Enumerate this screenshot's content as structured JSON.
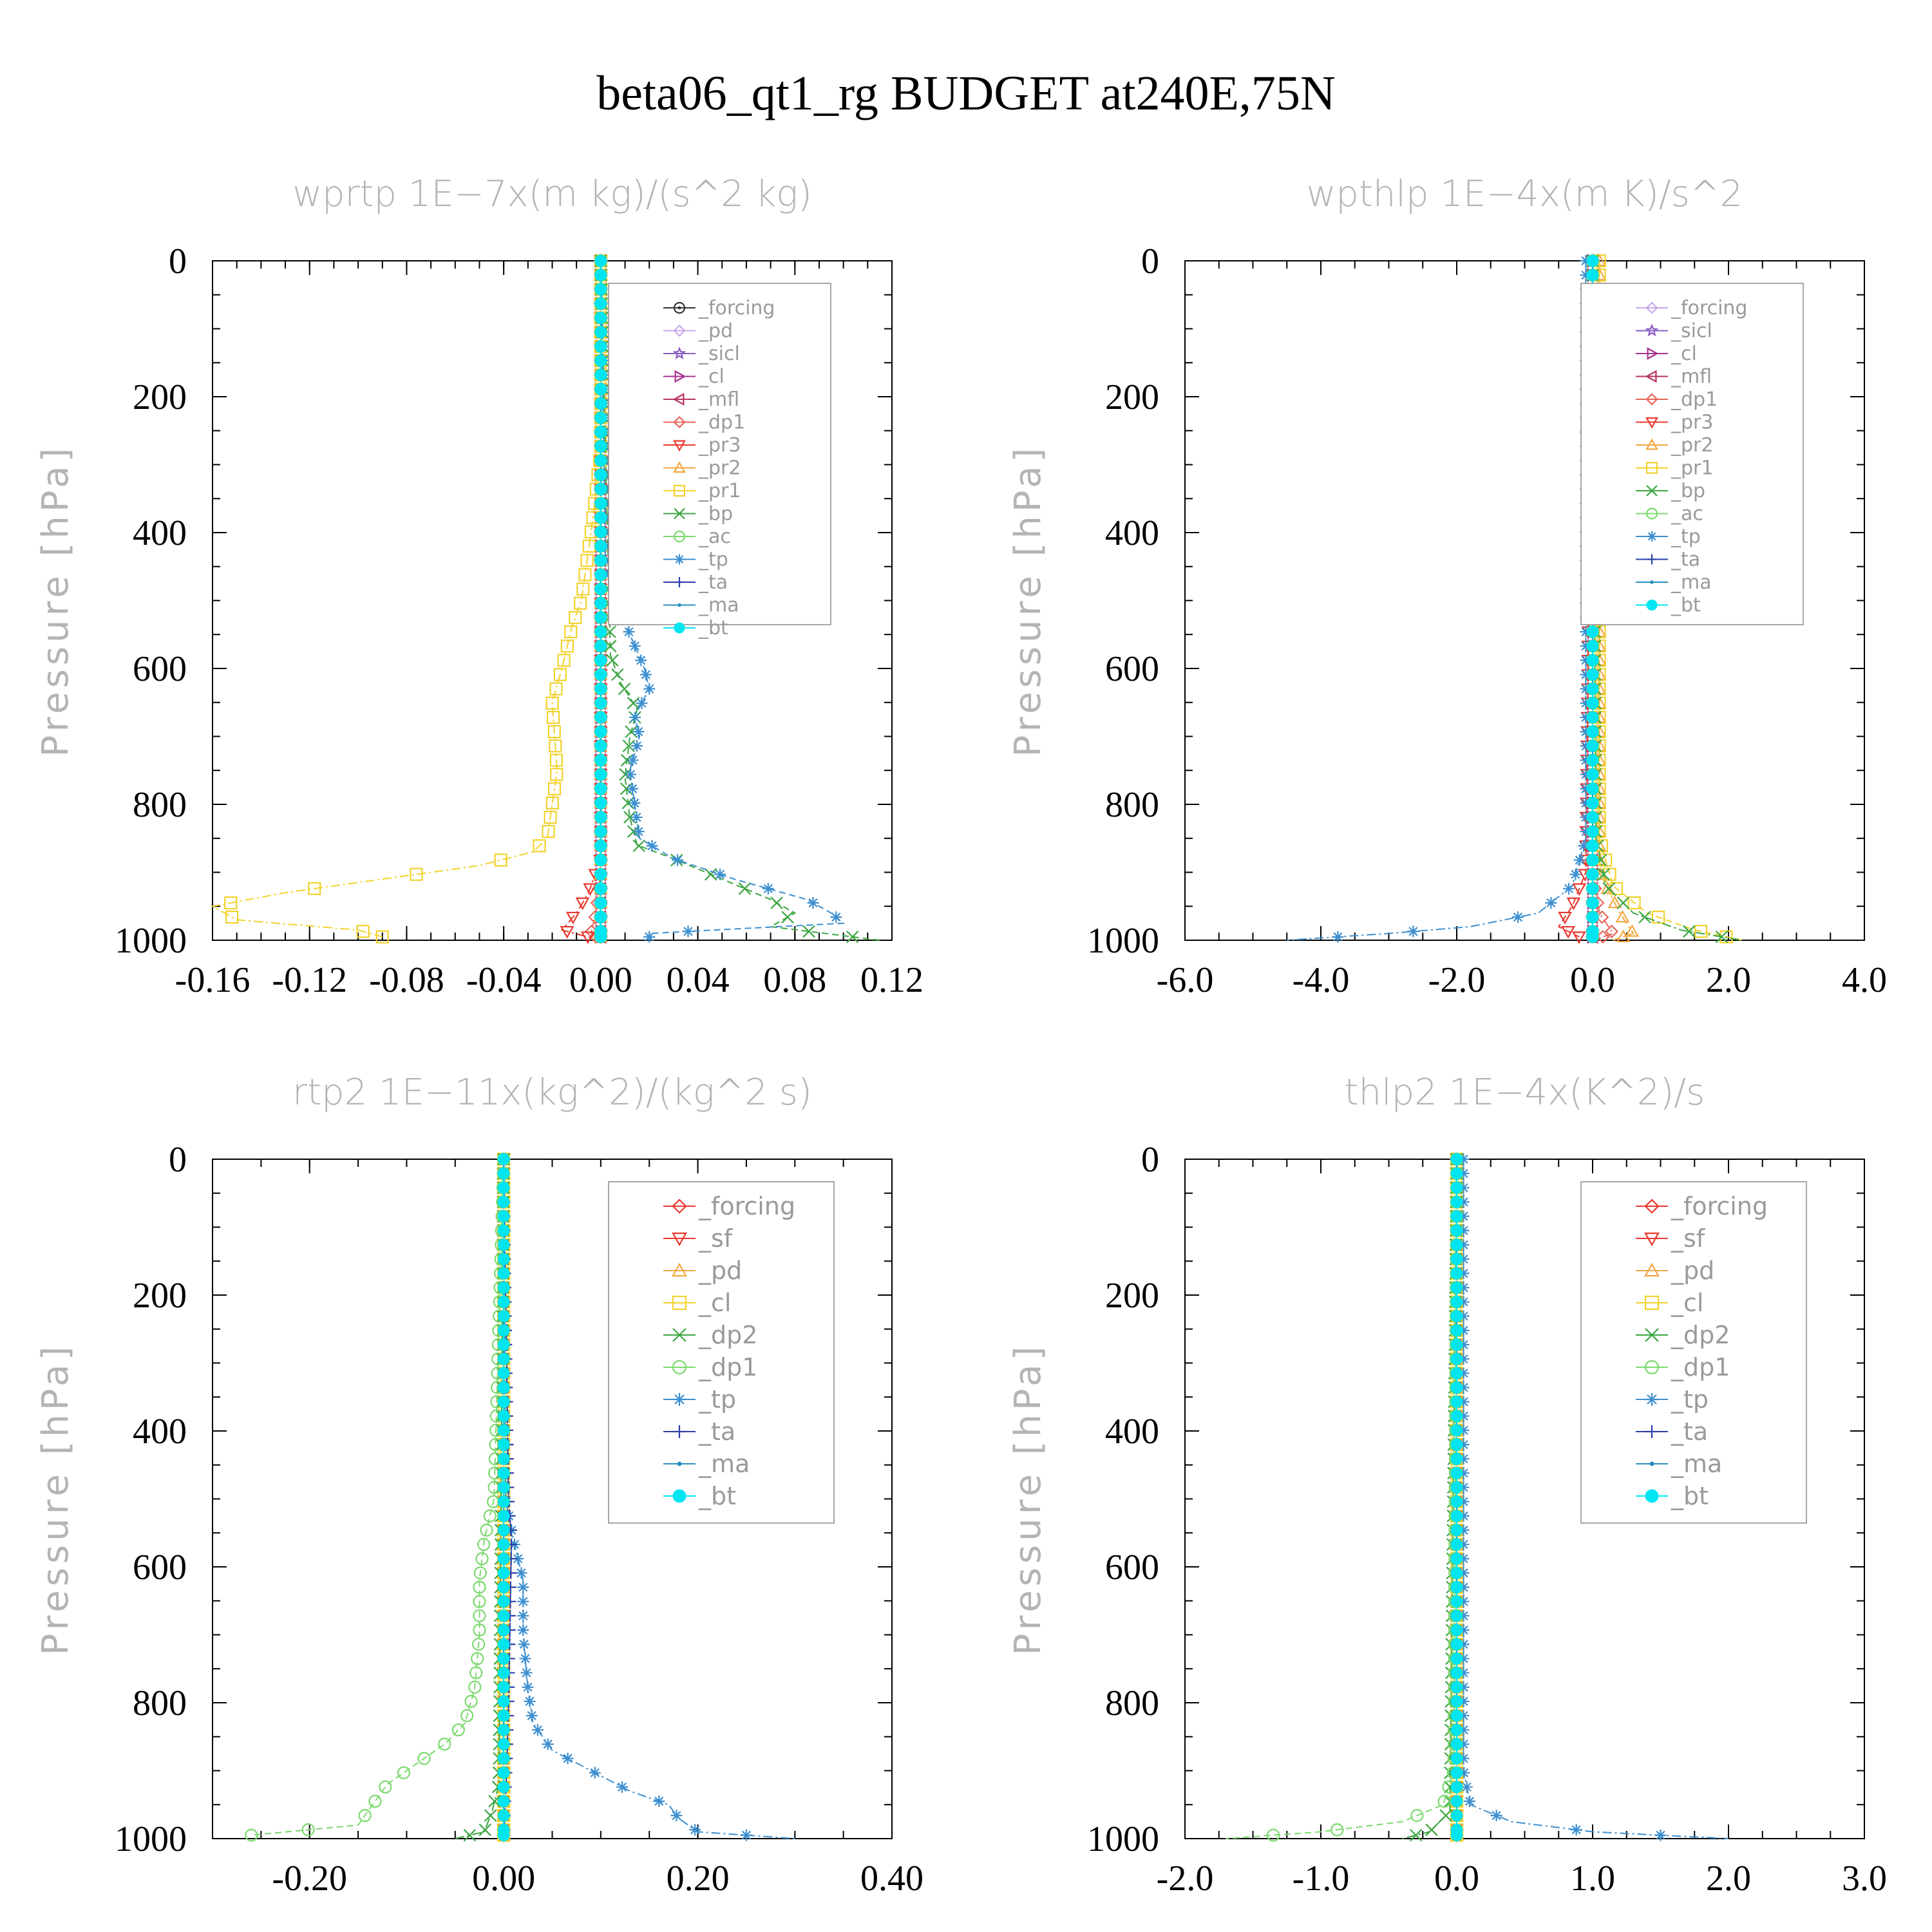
{
  "title": "beta06_qt1_rg  BUDGET at240E,75N",
  "chart_data": [
    {
      "type": "line",
      "title": "wprtp   1E−7x(m kg)/(s^2 kg)",
      "ylabel": "Pressure [hPa]",
      "xlabel": "",
      "xlim": [
        -0.16,
        0.12
      ],
      "ylim": [
        1000,
        0
      ],
      "xticks": [
        "-0.16",
        "-0.12",
        "-0.08",
        "-0.04",
        "0.00",
        "0.04",
        "0.08",
        "0.12"
      ],
      "yticks": [
        "0",
        "200",
        "400",
        "600",
        "800",
        "1000"
      ],
      "legend": "top-right",
      "series": [
        {
          "name": "_forcing",
          "color": "#333333",
          "marker": "circle-dot",
          "p": [
            0,
            500,
            1000
          ],
          "x": [
            0,
            0,
            0
          ]
        },
        {
          "name": "_pd",
          "color": "#c9a8e8",
          "marker": "diamond",
          "p": [
            0,
            1000
          ],
          "x": [
            0,
            0
          ]
        },
        {
          "name": "_sicl",
          "color": "#8a5cc2",
          "marker": "star",
          "p": [
            0,
            1000
          ],
          "x": [
            0,
            0
          ]
        },
        {
          "name": "_cl",
          "color": "#a4308f",
          "marker": "tri-right",
          "p": [
            0,
            1000
          ],
          "x": [
            0,
            0
          ]
        },
        {
          "name": "_mfl",
          "color": "#b83262",
          "marker": "tri-left",
          "p": [
            0,
            1000
          ],
          "x": [
            0,
            0
          ]
        },
        {
          "name": "_dp1",
          "color": "#e8665a",
          "marker": "diamond",
          "p": [
            0,
            900,
            960,
            990,
            1000
          ],
          "x": [
            0,
            0,
            -0.002,
            -0.004,
            0
          ]
        },
        {
          "name": "_pr3",
          "color": "#e8372c",
          "marker": "tri-down",
          "p": [
            0,
            880,
            930,
            960,
            985,
            1000
          ],
          "x": [
            0,
            0,
            -0.005,
            -0.01,
            -0.016,
            0
          ]
        },
        {
          "name": "_pr2",
          "color": "#f2a742",
          "marker": "tri-up",
          "p": [
            0,
            1000
          ],
          "x": [
            0,
            0
          ]
        },
        {
          "name": "_pr1",
          "color": "#f2d22c",
          "marker": "square",
          "p": [
            0,
            280,
            400,
            500,
            540,
            600,
            650,
            700,
            750,
            800,
            850,
            870,
            890,
            910,
            930,
            950,
            970,
            985,
            995
          ],
          "x": [
            0,
            0,
            -0.004,
            -0.008,
            -0.012,
            -0.016,
            -0.02,
            -0.019,
            -0.018,
            -0.02,
            -0.022,
            -0.028,
            -0.05,
            -0.09,
            -0.13,
            -0.16,
            -0.15,
            -0.1,
            -0.09
          ]
        },
        {
          "name": "_bp",
          "color": "#3aa640",
          "marker": "x",
          "p": [
            0,
            580,
            620,
            660,
            700,
            760,
            820,
            860,
            880,
            910,
            940,
            960,
            980,
            1000
          ],
          "x": [
            0,
            0.004,
            0.008,
            0.015,
            0.012,
            0.01,
            0.012,
            0.015,
            0.03,
            0.05,
            0.07,
            0.08,
            0.07,
            0.115
          ]
        },
        {
          "name": "_ac",
          "color": "#7bd96e",
          "marker": "circle",
          "p": [
            0,
            1000
          ],
          "x": [
            0,
            0
          ]
        },
        {
          "name": "_tp",
          "color": "#3c8fd0",
          "marker": "asterisk",
          "p": [
            0,
            450,
            550,
            600,
            630,
            670,
            700,
            750,
            800,
            850,
            880,
            910,
            940,
            960,
            975,
            990
          ],
          "x": [
            0,
            0.002,
            0.012,
            0.018,
            0.02,
            0.014,
            0.016,
            0.012,
            0.014,
            0.016,
            0.03,
            0.055,
            0.085,
            0.095,
            0.1,
            0.02
          ]
        },
        {
          "name": "_ta",
          "color": "#2a3fa8",
          "marker": "plus",
          "p": [
            0,
            1000
          ],
          "x": [
            0,
            0
          ]
        },
        {
          "name": "_ma",
          "color": "#2a8fc0",
          "marker": "dot",
          "p": [
            0,
            1000
          ],
          "x": [
            0,
            0
          ]
        },
        {
          "name": "_bt",
          "color": "#00e5f0",
          "marker": "filled-circle",
          "p": [
            0,
            1000
          ],
          "x": [
            0,
            0
          ]
        }
      ]
    },
    {
      "type": "line",
      "title": "wpthlp   1E−4x(m K)/s^2",
      "ylabel": "Pressure [hPa]",
      "xlabel": "",
      "xlim": [
        -6.0,
        4.0
      ],
      "ylim": [
        1000,
        0
      ],
      "xticks": [
        "-6.0",
        "-4.0",
        "-2.0",
        "0.0",
        "2.0",
        "4.0"
      ],
      "yticks": [
        "0",
        "200",
        "400",
        "600",
        "800",
        "1000"
      ],
      "legend": "top-right",
      "series": [
        {
          "name": "_forcing",
          "color": "#c9a8e8",
          "marker": "diamond",
          "p": [
            0,
            1000
          ],
          "x": [
            0,
            0
          ]
        },
        {
          "name": "_sicl",
          "color": "#8a5cc2",
          "marker": "star",
          "p": [
            0,
            1000
          ],
          "x": [
            0,
            0
          ]
        },
        {
          "name": "_cl",
          "color": "#a4308f",
          "marker": "tri-right",
          "p": [
            0,
            1000
          ],
          "x": [
            0,
            0
          ]
        },
        {
          "name": "_mfl",
          "color": "#b83262",
          "marker": "tri-left",
          "p": [
            0,
            1000
          ],
          "x": [
            0,
            0
          ]
        },
        {
          "name": "_dp1",
          "color": "#e8665a",
          "marker": "diamond",
          "p": [
            0,
            900,
            960,
            990,
            1000
          ],
          "x": [
            0,
            0,
            0.1,
            0.3,
            0
          ]
        },
        {
          "name": "_pr3",
          "color": "#e8372c",
          "marker": "tri-down",
          "p": [
            0,
            900,
            950,
            980,
            995
          ],
          "x": [
            0,
            -0.1,
            -0.3,
            -0.5,
            -0.2
          ]
        },
        {
          "name": "_pr2",
          "color": "#f2a742",
          "marker": "tri-up",
          "p": [
            0,
            900,
            960,
            990,
            1000
          ],
          "x": [
            0.1,
            0.1,
            0.4,
            0.6,
            0.3
          ]
        },
        {
          "name": "_pr1",
          "color": "#f2d22c",
          "marker": "square",
          "p": [
            0,
            850,
            920,
            960,
            985,
            1000
          ],
          "x": [
            0.1,
            0.1,
            0.3,
            0.8,
            1.5,
            2.2
          ]
        },
        {
          "name": "_bp",
          "color": "#3aa640",
          "marker": "x",
          "p": [
            0,
            850,
            920,
            960,
            985,
            1000
          ],
          "x": [
            0,
            0.05,
            0.2,
            0.6,
            1.3,
            2.2
          ]
        },
        {
          "name": "_ac",
          "color": "#7bd96e",
          "marker": "circle",
          "p": [
            0,
            1000
          ],
          "x": [
            0,
            0
          ]
        },
        {
          "name": "_tp",
          "color": "#3c8fd0",
          "marker": "asterisk",
          "p": [
            0,
            850,
            920,
            960,
            980,
            990,
            1000
          ],
          "x": [
            -0.1,
            -0.1,
            -0.3,
            -0.8,
            -1.8,
            -3.0,
            -4.5
          ]
        },
        {
          "name": "_ta",
          "color": "#2a3fa8",
          "marker": "plus",
          "p": [
            0,
            1000
          ],
          "x": [
            0,
            0
          ]
        },
        {
          "name": "_ma",
          "color": "#2a8fc0",
          "marker": "dot",
          "p": [
            0,
            1000
          ],
          "x": [
            0,
            0
          ]
        },
        {
          "name": "_bt",
          "color": "#00e5f0",
          "marker": "filled-circle",
          "p": [
            0,
            1000
          ],
          "x": [
            0,
            0
          ]
        }
      ]
    },
    {
      "type": "line",
      "title": "rtp2   1E−11x(kg^2)/(kg^2 s)",
      "ylabel": "Pressure [hPa]",
      "xlabel": "",
      "xlim": [
        -0.3,
        0.4
      ],
      "ylim": [
        1000,
        0
      ],
      "xticks": [
        "-0.20",
        "0.00",
        "0.20",
        "0.40"
      ],
      "xtick_values": [
        -0.2,
        0.0,
        0.2,
        0.4
      ],
      "yticks": [
        "0",
        "200",
        "400",
        "600",
        "800",
        "1000"
      ],
      "legend": "top-right",
      "series": [
        {
          "name": "_forcing",
          "color": "#e8372c",
          "marker": "diamond",
          "p": [
            0,
            1000
          ],
          "x": [
            0,
            0
          ]
        },
        {
          "name": "_sf",
          "color": "#e8372c",
          "marker": "tri-down",
          "p": [
            0,
            1000
          ],
          "x": [
            0,
            0
          ]
        },
        {
          "name": "_pd",
          "color": "#f2a742",
          "marker": "tri-up",
          "p": [
            0,
            1000
          ],
          "x": [
            0,
            0
          ]
        },
        {
          "name": "_cl",
          "color": "#f2d22c",
          "marker": "square",
          "p": [
            0,
            1000
          ],
          "x": [
            0,
            0
          ]
        },
        {
          "name": "_dp2",
          "color": "#3aa640",
          "marker": "x",
          "p": [
            0,
            920,
            960,
            990,
            1000
          ],
          "x": [
            0,
            -0.005,
            -0.012,
            -0.02,
            -0.05
          ]
        },
        {
          "name": "_dp1",
          "color": "#7bd96e",
          "marker": "circle",
          "p": [
            0,
            500,
            560,
            620,
            700,
            780,
            830,
            860,
            880,
            900,
            920,
            940,
            960,
            980,
            995
          ],
          "x": [
            0,
            -0.01,
            -0.02,
            -0.025,
            -0.025,
            -0.03,
            -0.04,
            -0.06,
            -0.08,
            -0.1,
            -0.12,
            -0.13,
            -0.14,
            -0.15,
            -0.26
          ]
        },
        {
          "name": "_tp",
          "color": "#3c8fd0",
          "marker": "asterisk",
          "p": [
            0,
            500,
            560,
            620,
            700,
            780,
            830,
            870,
            900,
            930,
            950,
            970,
            990,
            1000
          ],
          "x": [
            0,
            0.002,
            0.01,
            0.02,
            0.02,
            0.025,
            0.03,
            0.05,
            0.09,
            0.13,
            0.17,
            0.18,
            0.2,
            0.3
          ]
        },
        {
          "name": "_ta",
          "color": "#2a3fa8",
          "marker": "plus",
          "p": [
            0,
            500,
            560,
            800,
            900,
            1000
          ],
          "x": [
            0,
            0.005,
            0.008,
            0.005,
            0.003,
            0
          ]
        },
        {
          "name": "_ma",
          "color": "#2a8fc0",
          "marker": "dot",
          "p": [
            0,
            1000
          ],
          "x": [
            0,
            0
          ]
        },
        {
          "name": "_bt",
          "color": "#00e5f0",
          "marker": "filled-circle",
          "p": [
            0,
            1000
          ],
          "x": [
            0,
            0
          ]
        }
      ]
    },
    {
      "type": "line",
      "title": "thlp2   1E−4x(K^2)/s",
      "ylabel": "Pressure [hPa]",
      "xlabel": "",
      "xlim": [
        -2.0,
        3.0
      ],
      "ylim": [
        1000,
        0
      ],
      "xticks": [
        "-2.0",
        "-1.0",
        "0.0",
        "1.0",
        "2.0",
        "3.0"
      ],
      "yticks": [
        "0",
        "200",
        "400",
        "600",
        "800",
        "1000"
      ],
      "legend": "top-right",
      "series": [
        {
          "name": "_forcing",
          "color": "#e8372c",
          "marker": "diamond",
          "p": [
            0,
            1000
          ],
          "x": [
            0,
            0
          ]
        },
        {
          "name": "_sf",
          "color": "#e8372c",
          "marker": "tri-down",
          "p": [
            0,
            1000
          ],
          "x": [
            0,
            0
          ]
        },
        {
          "name": "_pd",
          "color": "#f2a742",
          "marker": "tri-up",
          "p": [
            0,
            1000
          ],
          "x": [
            0,
            0
          ]
        },
        {
          "name": "_cl",
          "color": "#f2d22c",
          "marker": "square",
          "p": [
            0,
            1000
          ],
          "x": [
            0,
            0
          ]
        },
        {
          "name": "_dp2",
          "color": "#3aa640",
          "marker": "x",
          "p": [
            0,
            960,
            990,
            1000
          ],
          "x": [
            0,
            -0.05,
            -0.2,
            -0.4
          ]
        },
        {
          "name": "_dp1",
          "color": "#7bd96e",
          "marker": "circle",
          "p": [
            0,
            900,
            950,
            975,
            990,
            1000
          ],
          "x": [
            0,
            -0.02,
            -0.1,
            -0.4,
            -1.0,
            -1.7
          ]
        },
        {
          "name": "_tp",
          "color": "#3c8fd0",
          "marker": "asterisk",
          "p": [
            0,
            900,
            950,
            975,
            990,
            1000
          ],
          "x": [
            0.05,
            0.05,
            0.1,
            0.4,
            1.0,
            2.0
          ]
        },
        {
          "name": "_ta",
          "color": "#2a3fa8",
          "marker": "plus",
          "p": [
            0,
            1000
          ],
          "x": [
            0,
            0
          ]
        },
        {
          "name": "_ma",
          "color": "#2a8fc0",
          "marker": "dot",
          "p": [
            0,
            1000
          ],
          "x": [
            0,
            0
          ]
        },
        {
          "name": "_bt",
          "color": "#00e5f0",
          "marker": "filled-circle",
          "p": [
            0,
            1000
          ],
          "x": [
            0,
            0
          ]
        }
      ]
    }
  ]
}
